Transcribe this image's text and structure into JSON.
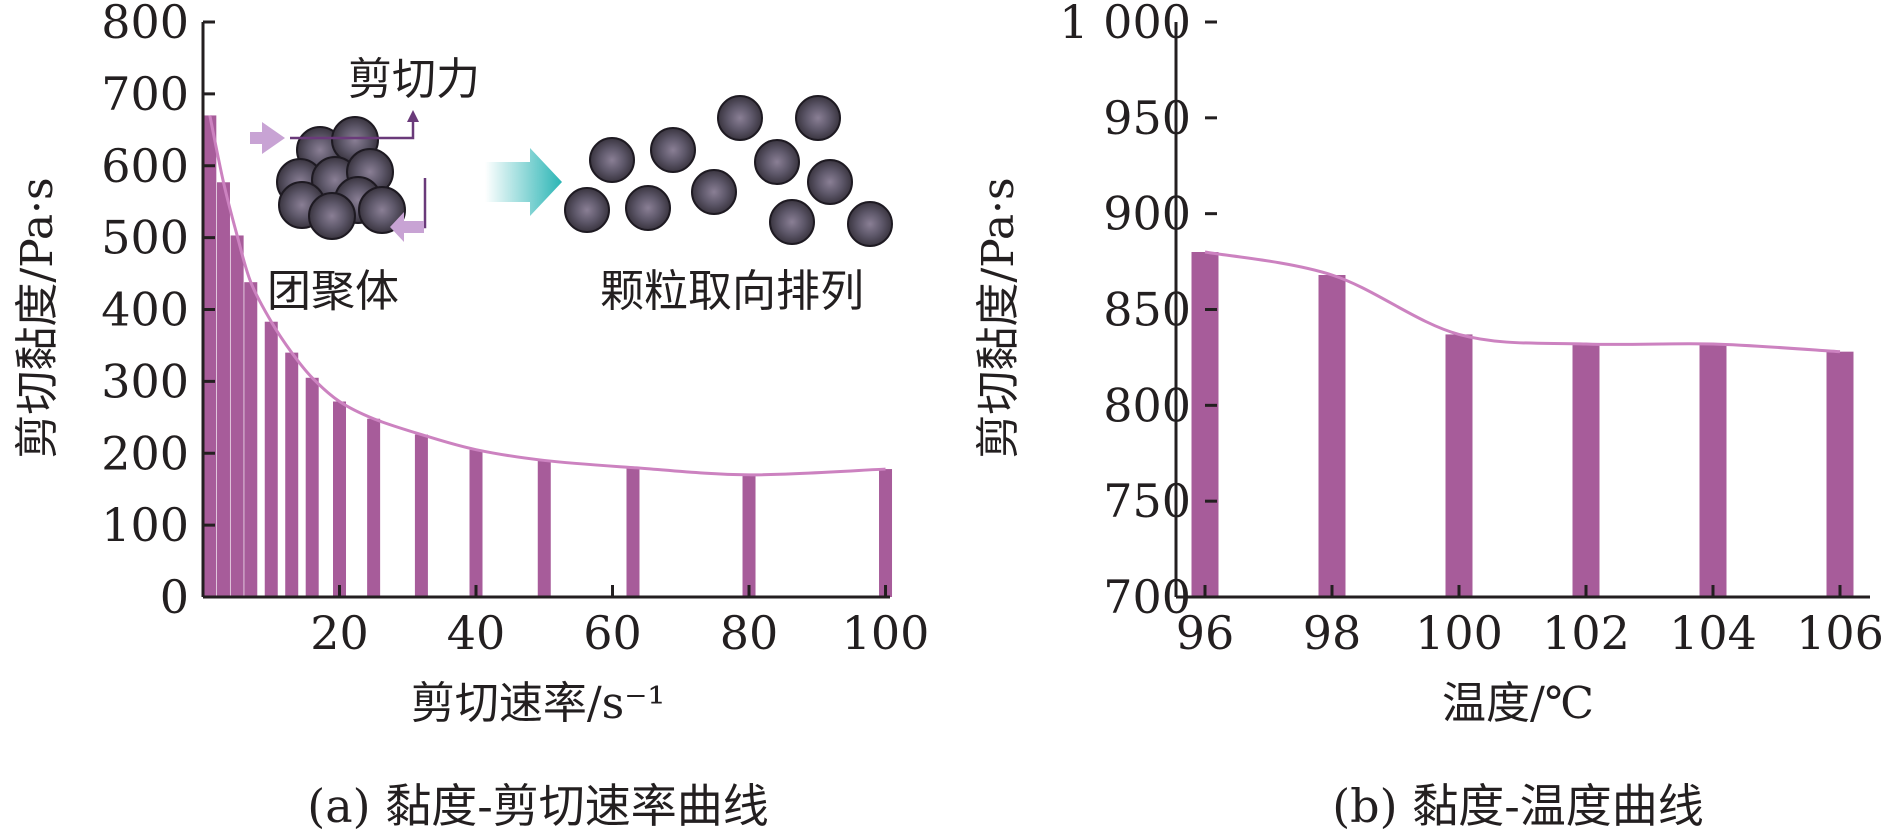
{
  "chart_data": [
    {
      "type": "bar",
      "caption": "(a) 黏度-剪切速率曲线",
      "xlabel": "剪切速率/s⁻¹",
      "ylabel": "剪切黏度/Pa·s",
      "xlim": [
        0,
        103
      ],
      "ylim": [
        0,
        800
      ],
      "xticks": [
        20,
        40,
        60,
        80,
        100
      ],
      "yticks": [
        0,
        100,
        200,
        300,
        400,
        500,
        600,
        700,
        800
      ],
      "x": [
        1,
        3,
        5,
        7,
        10,
        13,
        16,
        20,
        25,
        32,
        40,
        50,
        63,
        80,
        100
      ],
      "values": [
        670,
        577,
        503,
        438,
        383,
        340,
        305,
        272,
        248,
        226,
        205,
        190,
        180,
        170,
        178
      ],
      "curve": [
        [
          1,
          670
        ],
        [
          3,
          577
        ],
        [
          5,
          503
        ],
        [
          7,
          438
        ],
        [
          10,
          383
        ],
        [
          13,
          340
        ],
        [
          16,
          305
        ],
        [
          20,
          272
        ],
        [
          25,
          248
        ],
        [
          32,
          226
        ],
        [
          40,
          205
        ],
        [
          50,
          190
        ],
        [
          63,
          180
        ],
        [
          80,
          170
        ],
        [
          100,
          178
        ]
      ],
      "bar_color": "#a75c9a",
      "line_color": "#cc82c0",
      "inset": {
        "shear_label": "剪切力",
        "aggregate_label": "团聚体",
        "aligned_label": "颗粒取向排列"
      }
    },
    {
      "type": "bar",
      "caption": "(b) 黏度-温度曲线",
      "xlabel": "温度/℃",
      "ylabel": "剪切黏度/Pa·s",
      "xlim": [
        96,
        106
      ],
      "ylim": [
        700,
        1000
      ],
      "xticks": [
        96,
        98,
        100,
        102,
        104,
        106
      ],
      "xtick_labels": [
        "96",
        "98",
        "100",
        "102",
        "104",
        "106"
      ],
      "yticks": [
        700,
        750,
        800,
        850,
        900,
        950,
        1000
      ],
      "ytick_labels": [
        "700",
        "750",
        "800",
        "850",
        "900",
        "950",
        "1 000"
      ],
      "x": [
        96,
        98,
        100,
        102,
        104,
        106
      ],
      "values": [
        880,
        868,
        837,
        832,
        832,
        828
      ],
      "curve": [
        [
          96,
          880
        ],
        [
          98,
          868
        ],
        [
          100,
          837
        ],
        [
          102,
          832
        ],
        [
          104,
          832
        ],
        [
          106,
          828
        ]
      ],
      "bar_color": "#a75c9a",
      "line_color": "#cc82c0"
    }
  ]
}
